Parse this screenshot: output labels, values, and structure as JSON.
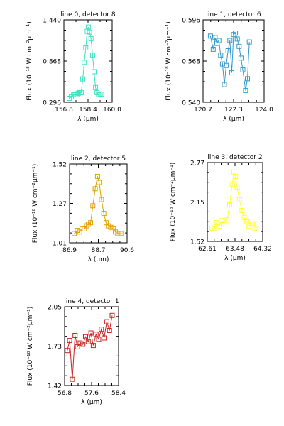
{
  "chart_data": [
    {
      "type": "line",
      "title": "line 0, detector 8",
      "xlabel": "λ (μm)",
      "ylabel": "Flux (10⁻¹⁸ W cm⁻²μm⁻¹)",
      "xlim": [
        156.8,
        160.0
      ],
      "ylim": [
        0.296,
        1.44
      ],
      "xticks": [
        "156.8",
        "158.4",
        "160.0"
      ],
      "yticks": [
        "0.296",
        "0.868",
        "1.440"
      ],
      "color": "#40e0c0",
      "series": [
        {
          "x": [
            157.15,
            157.3,
            157.45,
            157.55,
            157.65,
            157.75,
            157.85,
            157.95,
            158.05,
            158.15,
            158.25,
            158.35,
            158.42,
            158.5,
            158.6,
            158.7,
            158.8,
            158.9,
            159.0,
            159.1,
            159.2,
            159.3
          ],
          "y": [
            0.35,
            0.37,
            0.4,
            0.4,
            0.4,
            0.42,
            0.43,
            0.43,
            0.62,
            0.85,
            1.05,
            1.28,
            1.34,
            1.27,
            1.18,
            0.95,
            0.72,
            0.5,
            0.43,
            0.4,
            0.41,
            0.41
          ]
        }
      ]
    },
    {
      "type": "line",
      "title": "line 1, detector 6",
      "xlabel": "λ (μm)",
      "ylabel": "Flux (10⁻¹⁸ W cm⁻²μm⁻¹)",
      "xlim": [
        120.7,
        124.0
      ],
      "ylim": [
        0.54,
        0.596
      ],
      "xticks": [
        "120.7",
        "122.3",
        "124.0"
      ],
      "yticks": [
        "0.540",
        "0.568",
        "0.596"
      ],
      "color": "#3399cc",
      "series": [
        {
          "x": [
            121.1,
            121.25,
            121.35,
            121.45,
            121.55,
            121.65,
            121.75,
            121.85,
            121.95,
            122.05,
            122.15,
            122.25,
            122.35,
            122.45,
            122.55,
            122.65,
            122.75,
            122.85,
            123.0,
            123.1,
            123.2
          ],
          "y": [
            0.585,
            0.576,
            0.584,
            0.58,
            0.582,
            0.572,
            0.566,
            0.552,
            0.565,
            0.575,
            0.582,
            0.56,
            0.586,
            0.587,
            0.583,
            0.578,
            0.57,
            0.562,
            0.548,
            0.556,
            0.581
          ]
        }
      ]
    },
    {
      "type": "line",
      "title": "line 2, detector 5",
      "xlabel": "λ (μm)",
      "ylabel": "Flux (10⁻¹⁸ W cm⁻²μm⁻¹)",
      "xlim": [
        86.9,
        90.6
      ],
      "ylim": [
        1.01,
        1.52
      ],
      "xticks": [
        "86.9",
        "88.7",
        "90.6"
      ],
      "yticks": [
        "1.01",
        "1.27",
        "1.52"
      ],
      "color": "#e0a000",
      "series": [
        {
          "x": [
            87.2,
            87.4,
            87.55,
            87.7,
            87.85,
            88.0,
            88.1,
            88.25,
            88.4,
            88.55,
            88.7,
            88.8,
            88.95,
            89.1,
            89.25,
            89.4,
            89.55,
            89.7,
            89.85,
            90.0,
            90.2
          ],
          "y": [
            1.07,
            1.09,
            1.08,
            1.1,
            1.1,
            1.12,
            1.13,
            1.14,
            1.25,
            1.36,
            1.44,
            1.4,
            1.29,
            1.2,
            1.14,
            1.12,
            1.11,
            1.1,
            1.08,
            1.07,
            1.07
          ]
        }
      ]
    },
    {
      "type": "line",
      "title": "line 3, detector 2",
      "xlabel": "λ (μm)",
      "ylabel": "Flux (10⁻¹⁸ W cm⁻²μm⁻¹)",
      "xlim": [
        62.61,
        64.32
      ],
      "ylim": [
        1.52,
        2.77
      ],
      "xticks": [
        "62.61",
        "63.48",
        "64.32"
      ],
      "yticks": [
        "1.52",
        "2.15",
        "2.77"
      ],
      "color": "#ffff33",
      "series": [
        {
          "x": [
            62.75,
            62.83,
            62.9,
            62.98,
            63.05,
            63.13,
            63.22,
            63.3,
            63.38,
            63.43,
            63.48,
            63.53,
            63.6,
            63.68,
            63.75,
            63.83,
            63.9,
            64.0,
            64.08
          ],
          "y": [
            1.73,
            1.72,
            1.82,
            1.76,
            1.85,
            1.8,
            1.86,
            2.1,
            2.43,
            2.62,
            2.55,
            2.38,
            2.18,
            2.01,
            1.9,
            1.83,
            1.76,
            1.8,
            1.73
          ]
        }
      ]
    },
    {
      "type": "line",
      "title": "line 4, detector 1",
      "xlabel": "λ (μm)",
      "ylabel": "Flux (10⁻¹⁸ W cm⁻²μm⁻¹)",
      "xlim": [
        56.8,
        58.4
      ],
      "ylim": [
        1.42,
        2.05
      ],
      "xticks": [
        "56.8",
        "57.6",
        "58.4"
      ],
      "yticks": [
        "1.42",
        "1.73",
        "2.05"
      ],
      "color": "#cc2222",
      "series": [
        {
          "x": [
            56.88,
            56.95,
            57.03,
            57.11,
            57.18,
            57.26,
            57.34,
            57.42,
            57.5,
            57.58,
            57.65,
            57.73,
            57.81,
            57.89,
            57.97,
            58.05,
            58.13,
            58.21
          ],
          "y": [
            1.7,
            1.78,
            1.47,
            1.82,
            1.73,
            1.76,
            1.75,
            1.81,
            1.77,
            1.84,
            1.74,
            1.83,
            1.79,
            1.87,
            1.8,
            1.93,
            1.86,
            1.98
          ]
        }
      ]
    }
  ]
}
